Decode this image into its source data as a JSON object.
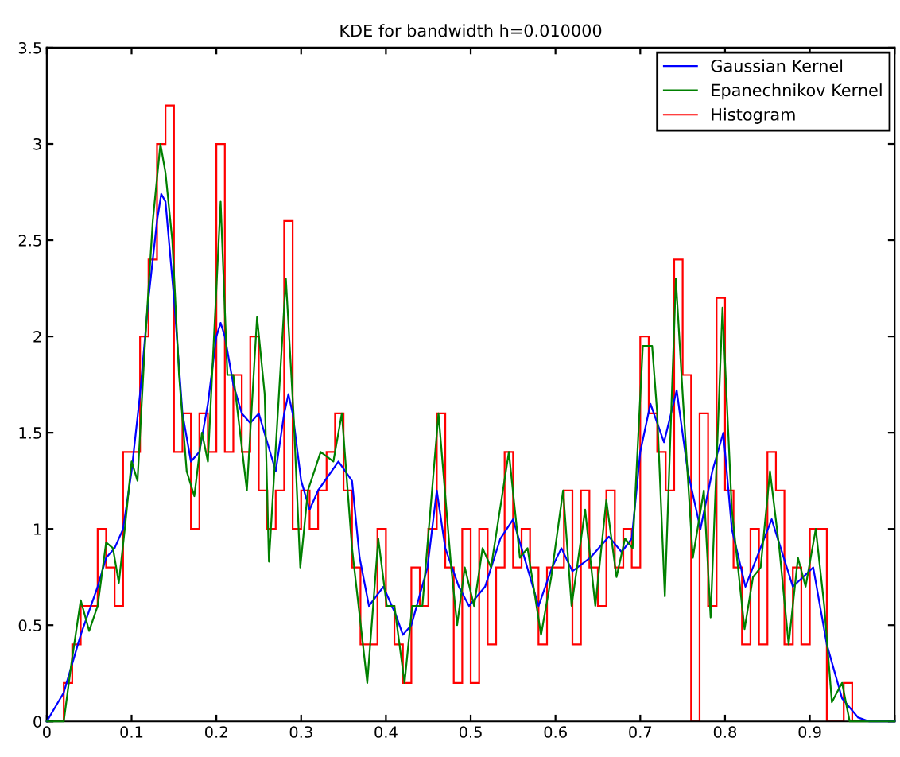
{
  "chart_data": {
    "type": "line",
    "title": "KDE for bandwidth h=0.010000",
    "xlim": [
      0,
      1
    ],
    "ylim": [
      0,
      3.5
    ],
    "xticks": [
      0,
      0.1,
      0.2,
      0.3,
      0.4,
      0.5,
      0.6,
      0.7,
      0.8,
      0.9,
      {
        "value": 1,
        "label": null
      }
    ],
    "yticks": [
      0,
      0.5,
      1,
      1.5,
      2,
      2.5,
      3,
      3.5
    ],
    "grid": false,
    "legend": "top right",
    "series": [
      {
        "name": "Gaussian Kernel",
        "color": "#0000ff",
        "x": [
          0,
          0.02,
          0.04,
          0.06,
          0.07,
          0.08,
          0.09,
          0.1,
          0.11,
          0.12,
          0.13,
          0.135,
          0.14,
          0.15,
          0.16,
          0.17,
          0.18,
          0.19,
          0.2,
          0.205,
          0.21,
          0.22,
          0.23,
          0.24,
          0.25,
          0.26,
          0.27,
          0.28,
          0.285,
          0.29,
          0.3,
          0.31,
          0.32,
          0.344,
          0.36,
          0.369,
          0.38,
          0.397,
          0.412,
          0.42,
          0.43,
          0.449,
          0.46,
          0.47,
          0.486,
          0.498,
          0.517,
          0.535,
          0.55,
          0.56,
          0.58,
          0.596,
          0.607,
          0.62,
          0.641,
          0.663,
          0.678,
          0.69,
          0.7,
          0.712,
          0.728,
          0.743,
          0.756,
          0.771,
          0.785,
          0.798,
          0.808,
          0.824,
          0.855,
          0.88,
          0.904,
          0.92,
          0.938,
          0.957,
          0.97,
          1
        ],
        "values": [
          0,
          0.15,
          0.45,
          0.7,
          0.85,
          0.9,
          1.0,
          1.3,
          1.7,
          2.2,
          2.6,
          2.74,
          2.7,
          2.2,
          1.6,
          1.35,
          1.4,
          1.65,
          2.0,
          2.07,
          2.0,
          1.75,
          1.6,
          1.55,
          1.6,
          1.45,
          1.3,
          1.6,
          1.7,
          1.6,
          1.25,
          1.1,
          1.2,
          1.35,
          1.25,
          0.85,
          0.6,
          0.7,
          0.55,
          0.45,
          0.5,
          0.8,
          1.2,
          0.9,
          0.7,
          0.6,
          0.7,
          0.95,
          1.05,
          0.9,
          0.6,
          0.8,
          0.9,
          0.78,
          0.85,
          0.96,
          0.88,
          0.95,
          1.4,
          1.65,
          1.45,
          1.72,
          1.3,
          1.0,
          1.3,
          1.5,
          1.0,
          0.7,
          1.05,
          0.7,
          0.8,
          0.4,
          0.12,
          0.02,
          0,
          0
        ]
      },
      {
        "name": "Epanechnikov Kernel",
        "color": "#008000",
        "x": [
          0,
          0.02,
          0.029,
          0.04,
          0.05,
          0.06,
          0.07,
          0.078,
          0.085,
          0.092,
          0.1,
          0.107,
          0.115,
          0.125,
          0.134,
          0.14,
          0.148,
          0.156,
          0.165,
          0.174,
          0.183,
          0.19,
          0.205,
          0.213,
          0.22,
          0.236,
          0.248,
          0.257,
          0.262,
          0.282,
          0.291,
          0.299,
          0.308,
          0.323,
          0.338,
          0.348,
          0.36,
          0.378,
          0.391,
          0.401,
          0.41,
          0.422,
          0.431,
          0.443,
          0.462,
          0.477,
          0.484,
          0.493,
          0.504,
          0.514,
          0.524,
          0.545,
          0.558,
          0.567,
          0.583,
          0.595,
          0.609,
          0.619,
          0.635,
          0.647,
          0.66,
          0.672,
          0.682,
          0.691,
          0.703,
          0.714,
          0.72,
          0.729,
          0.742,
          0.75,
          0.762,
          0.775,
          0.783,
          0.797,
          0.808,
          0.823,
          0.833,
          0.842,
          0.853,
          0.864,
          0.875,
          0.886,
          0.895,
          0.907,
          0.917,
          0.926,
          0.938,
          0.947,
          1
        ],
        "values": [
          0,
          0,
          0.3,
          0.63,
          0.47,
          0.6,
          0.93,
          0.9,
          0.72,
          1.0,
          1.35,
          1.25,
          1.9,
          2.6,
          3.0,
          2.85,
          2.5,
          1.8,
          1.3,
          1.17,
          1.5,
          1.35,
          2.7,
          1.8,
          1.8,
          1.2,
          2.1,
          1.7,
          0.83,
          2.3,
          1.6,
          0.8,
          1.2,
          1.4,
          1.35,
          1.6,
          0.9,
          0.2,
          0.95,
          0.6,
          0.6,
          0.2,
          0.6,
          0.6,
          1.6,
          0.8,
          0.5,
          0.8,
          0.6,
          0.9,
          0.8,
          1.4,
          0.85,
          0.9,
          0.45,
          0.75,
          1.2,
          0.6,
          1.1,
          0.6,
          1.15,
          0.75,
          0.95,
          0.9,
          1.95,
          1.95,
          1.6,
          0.65,
          2.3,
          1.7,
          0.85,
          1.2,
          0.54,
          2.15,
          1.1,
          0.48,
          0.75,
          0.8,
          1.3,
          0.9,
          0.4,
          0.85,
          0.7,
          1.0,
          0.6,
          0.1,
          0.2,
          0,
          0
        ]
      },
      {
        "name": "Histogram",
        "type": "histogram",
        "color": "#ff0000",
        "bins": [
          0,
          0.01,
          0.02,
          0.03,
          0.04,
          0.05,
          0.06,
          0.07,
          0.08,
          0.09,
          0.1,
          0.11,
          0.12,
          0.13,
          0.14,
          0.15,
          0.16,
          0.17,
          0.18,
          0.19,
          0.2,
          0.21,
          0.22,
          0.23,
          0.24,
          0.25,
          0.26,
          0.27,
          0.28,
          0.29,
          0.3,
          0.31,
          0.32,
          0.33,
          0.34,
          0.35,
          0.36,
          0.37,
          0.38,
          0.39,
          0.4,
          0.41,
          0.42,
          0.43,
          0.44,
          0.45,
          0.46,
          0.47,
          0.48,
          0.49,
          0.5,
          0.51,
          0.52,
          0.53,
          0.54,
          0.55,
          0.56,
          0.57,
          0.58,
          0.59,
          0.6,
          0.61,
          0.62,
          0.63,
          0.64,
          0.65,
          0.66,
          0.67,
          0.68,
          0.69,
          0.7,
          0.71,
          0.72,
          0.73,
          0.74,
          0.75,
          0.76,
          0.77,
          0.78,
          0.79,
          0.8,
          0.81,
          0.82,
          0.83,
          0.84,
          0.85,
          0.86,
          0.87,
          0.88,
          0.89,
          0.9,
          0.91,
          0.92,
          0.93,
          0.94,
          0.95,
          0.96,
          0.97,
          0.98,
          0.99,
          1
        ],
        "values": [
          0,
          0,
          0.2,
          0.4,
          0.6,
          0.6,
          1.0,
          0.8,
          0.6,
          1.4,
          1.4,
          2.0,
          2.4,
          3.0,
          3.2,
          1.4,
          1.6,
          1.0,
          1.6,
          1.4,
          3.0,
          1.4,
          1.8,
          1.4,
          2.0,
          1.2,
          1.0,
          1.2,
          2.6,
          1.0,
          1.2,
          1.0,
          1.2,
          1.4,
          1.6,
          1.2,
          0.8,
          0.4,
          0.4,
          1.0,
          0.6,
          0.4,
          0.2,
          0.8,
          0.6,
          1.0,
          1.6,
          0.8,
          0.2,
          1.0,
          0.2,
          1.0,
          0.4,
          0.8,
          1.4,
          0.8,
          1.0,
          0.8,
          0.4,
          0.8,
          0.8,
          1.2,
          0.4,
          1.2,
          0.8,
          0.6,
          1.2,
          0.8,
          1.0,
          0.8,
          2.0,
          1.6,
          1.4,
          1.2,
          2.4,
          1.8,
          0,
          1.6,
          0.6,
          2.2,
          1.2,
          0.8,
          0.4,
          1.0,
          0.4,
          1.4,
          1.2,
          0.4,
          0.8,
          0.4,
          1.0,
          1.0,
          0,
          0,
          0.2,
          0,
          0,
          0,
          0,
          0
        ]
      }
    ]
  }
}
